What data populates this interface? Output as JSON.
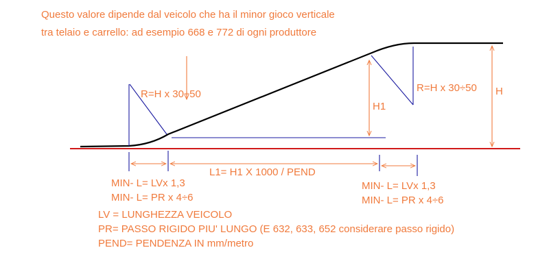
{
  "note": {
    "line1": "Questo valore dipende dal veicolo che ha il minor gioco verticale",
    "line2": "tra telaio e carrello: ad esempio 668 e 772 di ogni produttore"
  },
  "labels": {
    "radius_left": "R=H x 30÷50",
    "radius_right": "R=H x 30÷50",
    "h1": "H1",
    "h": "H",
    "l1": "L1= H1 X 1000 / PEND",
    "min_left_1": "MIN- L= LVx 1,3",
    "min_left_2": "MIN- L= PR x 4÷6",
    "min_right_1": "MIN- L= LVx 1,3",
    "min_right_2": "MIN- L= PR x 4÷6"
  },
  "legend": {
    "lv": "LV = LUNGHEZZA VEICOLO",
    "pr": "PR= PASSO RIGIDO PIU' LUNGO (E 632, 633, 652 considerare passo rigido)",
    "pend": "PEND= PENDENZA IN mm/metro"
  },
  "colors": {
    "text": "#f07a3c",
    "construction": "#1a1aa0",
    "ground": "#d01818",
    "profile": "#000000"
  }
}
